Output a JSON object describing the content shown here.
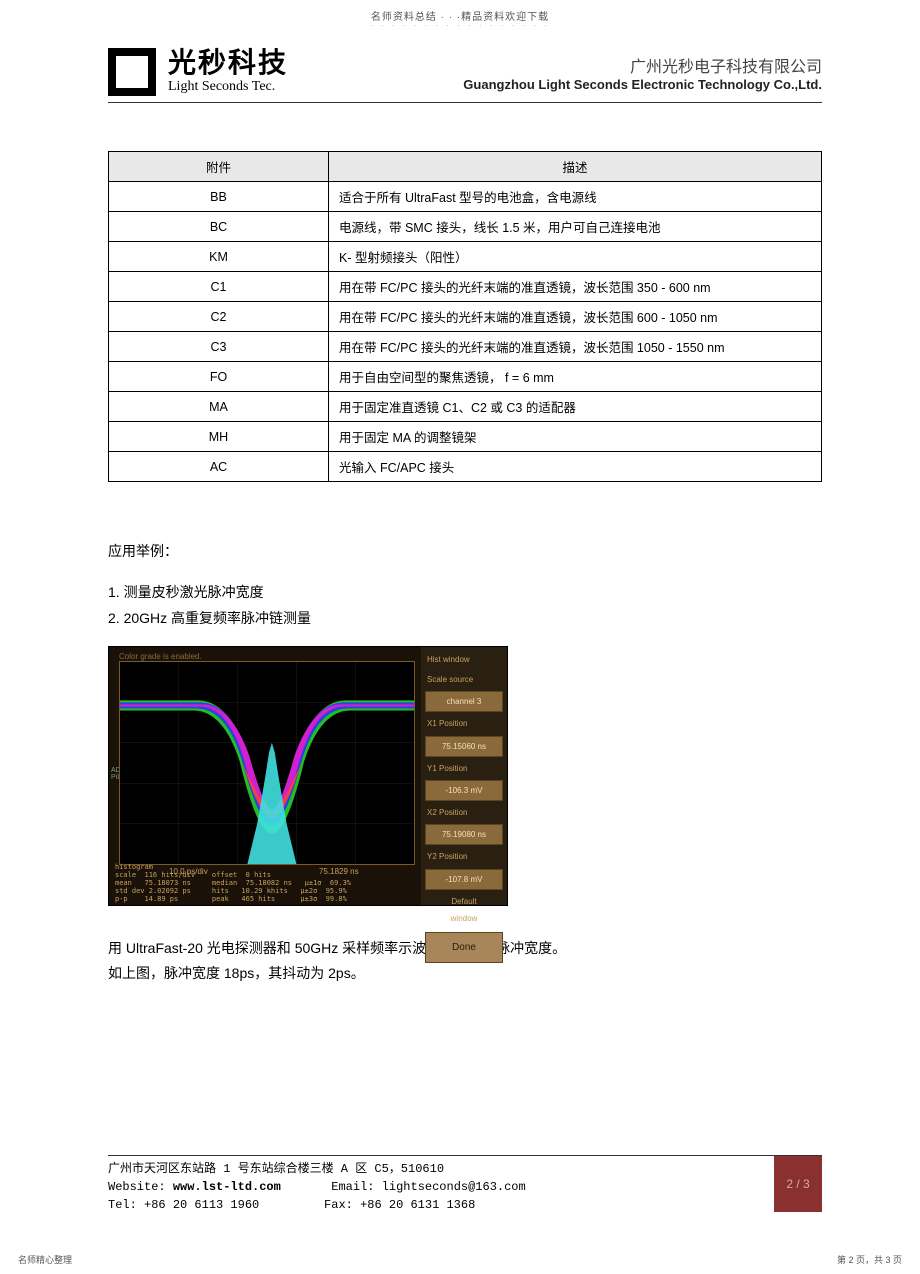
{
  "top_note": "名师资料总结 · · ·精品资料欢迎下载",
  "header": {
    "logo_cn": "光秒科技",
    "logo_en": "Light Seconds Tec.",
    "company_cn": "广州光秒电子科技有限公司",
    "company_en": "Guangzhou Light Seconds Electronic Technology Co.,Ltd."
  },
  "table": {
    "head_col1": "附件",
    "head_col2": "描述",
    "rows": [
      {
        "k": "BB",
        "v": "适合于所有   UltraFast   型号的电池盒，含电源线"
      },
      {
        "k": "BC",
        "v": "电源线，带   SMC  接头，线长   1.5 米，用户可自己连接电池"
      },
      {
        "k": "KM",
        "v": "K- 型射频接头（阳性）"
      },
      {
        "k": "C1",
        "v": "用在带  FC/PC  接头的光纤末端的准直透镜，波长范围      350 - 600 nm"
      },
      {
        "k": "C2",
        "v": "用在带  FC/PC  接头的光纤末端的准直透镜，波长范围      600 - 1050 nm"
      },
      {
        "k": "C3",
        "v": "用在带  FC/PC  接头的光纤末端的准直透镜，波长范围     1050 - 1550 nm"
      },
      {
        "k": "FO",
        "v": "用于自由空间型的聚焦透镜，     f = 6 mm"
      },
      {
        "k": "MA",
        "v": "用于固定准直透镜    C1、C2 或 C3 的适配器"
      },
      {
        "k": "MH",
        "v": "用于固定   MA  的调整镜架"
      },
      {
        "k": "AC",
        "v": "光输入  FC/APC   接头"
      }
    ]
  },
  "examples": {
    "title": "应用举例：",
    "item1": "1.  测量皮秒激光脉冲宽度",
    "item2": "2. 20GHz 高重复频率脉冲链测量"
  },
  "scope": {
    "top_note": "Color grade is enabled.",
    "left_note1": "ADVANCED PHOTONIC SYSTEMS",
    "left_note2": "PiLas",
    "axis1": "10.0 ps/div",
    "axis2": "75.1829 ns",
    "side": {
      "hist_window": "Hist window",
      "scale_source": "Scale source",
      "channel": "channel 3",
      "x1_label": "X1 Position",
      "x1_val": "75.15060 ns",
      "y1_label": "Y1 Position",
      "y1_val": "-106.3 mV",
      "x2_label": "X2 Position",
      "x2_val": "75.19080 ns",
      "y2_label": "Y2 Position",
      "y2_val": "-107.8 mV",
      "default": "Default",
      "window": "window",
      "done": "Done"
    },
    "histo": "histogram\nscale  116 hits/div    offset  0 hits\nmean   75.18073 ns     median  75.18082 ns   μ±1σ  69.3%\nstd dev 2.02092 ps     hits   10.29 khits   μ±2σ  95.9%\np-p    14.89 ps        peak   465 hits      μ±3σ  99.8%",
    "grid_color": "#7a5a2a",
    "bg": "#000000",
    "waveform_outer": "#20c020",
    "waveform_mid": "#3040e0",
    "waveform_inner": "#d020d0",
    "waveform_core": "#f04040",
    "histogram_fill": "#40e0e0"
  },
  "description": {
    "line1": "用 UltraFast-20 光电探测器和   50GHz 采样频率示波器测量皮秒脉冲宽度。",
    "line2": "如上图，脉冲宽度    18ps，其抖动为  2ps。"
  },
  "footer": {
    "addr": "广州市天河区东站路 1 号东站综合楼三楼 A 区 C5，510610",
    "web_label": "Website:",
    "web": "www.lst-ltd.com",
    "email_label": "Email:",
    "email": "lightseconds@163.com",
    "tel_label": "Tel:",
    "tel": "+86 20 6113 1960",
    "fax_label": "Fax:",
    "fax": "+86 20 6131 1368",
    "page": "2 / 3"
  },
  "bottom": {
    "left": "名师精心整理",
    "right": "第 2 页，共 3 页"
  }
}
